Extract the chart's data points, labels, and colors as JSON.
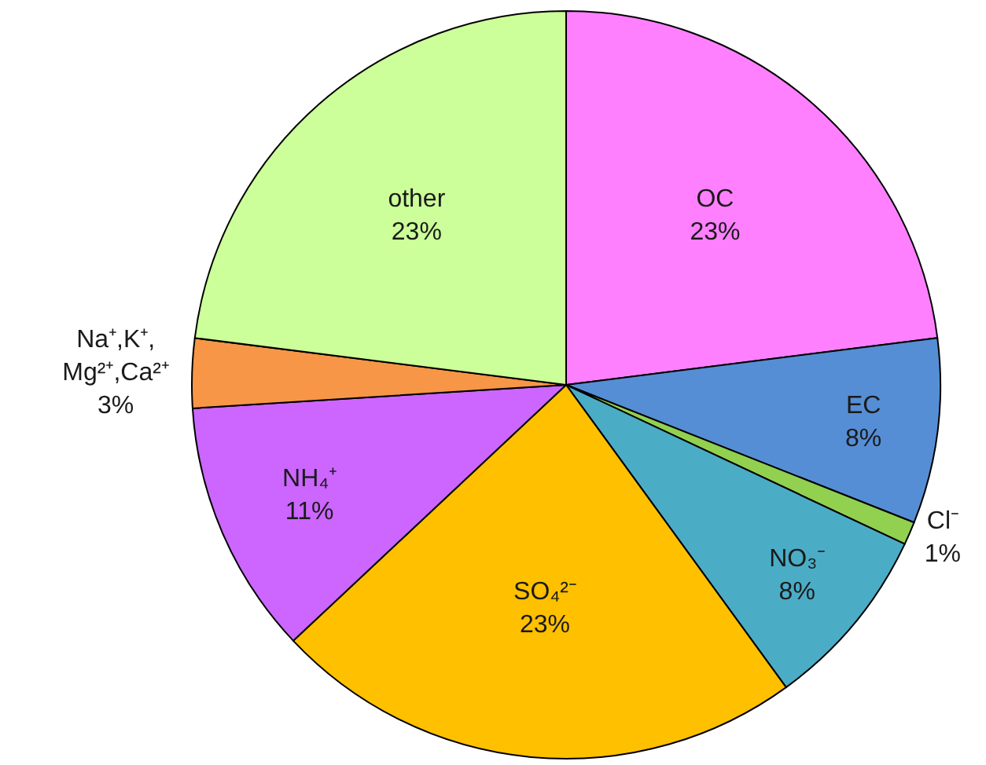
{
  "chart_data": {
    "type": "pie",
    "categories": [
      "OC",
      "EC",
      "Cl⁻",
      "NO₃⁻",
      "SO₄²⁻",
      "NH₄⁺",
      "Na⁺,K⁺,\nMg²⁺,Ca²⁺",
      "other"
    ],
    "values": [
      23,
      8,
      1,
      8,
      23,
      11,
      3,
      23
    ],
    "value_labels": [
      "23%",
      "8%",
      "1%",
      "8%",
      "23%",
      "11%",
      "3%",
      "23%"
    ],
    "colors": [
      "#ff80ff",
      "#558ed5",
      "#92d050",
      "#4bacc6",
      "#ffc000",
      "#cc66ff",
      "#f79646",
      "#ccff99"
    ]
  }
}
